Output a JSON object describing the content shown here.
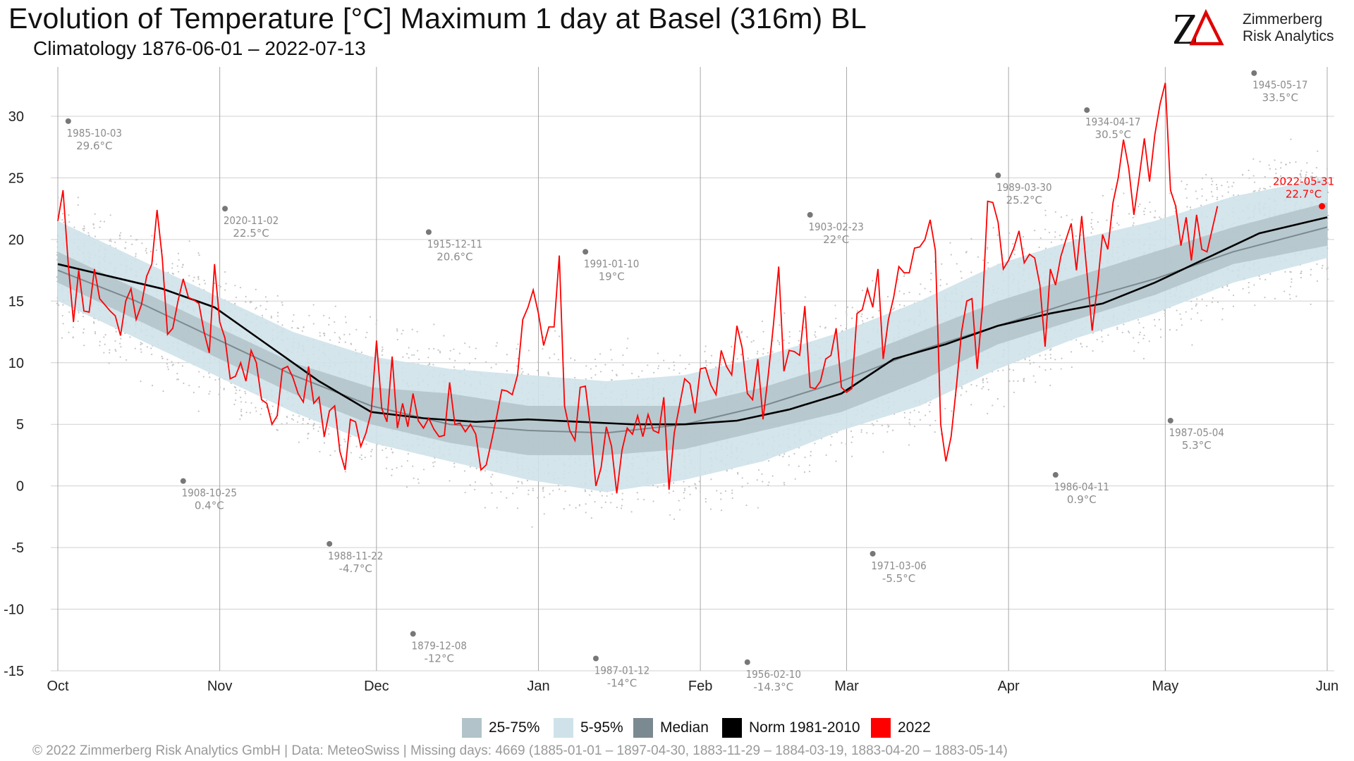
{
  "title": "Evolution of Temperature [°C] Maximum 1 day at Basel (316m) BL",
  "subtitle": "Climatology 1876-06-01 – 2022-07-13",
  "logo": {
    "text_line1": "Zimmerberg",
    "text_line2": "Risk Analytics",
    "letters": "ZΔ"
  },
  "legend": [
    {
      "label": "25-75%",
      "color": "#b2c3c9"
    },
    {
      "label": "5-95%",
      "color": "#cfe2ea"
    },
    {
      "label": "Median",
      "color": "#7b8a90"
    },
    {
      "label": "Norm 1981-2010",
      "color": "#000000"
    },
    {
      "label": "2022",
      "color": "#ff0000"
    }
  ],
  "footer": "©  2022 Zimmerberg Risk Analytics GmbH | Data: MeteoSwiss | Missing days: 4669 (1885-01-01 – 1897-04-30, 1883-11-29 – 1884-03-19, 1883-04-20 – 1883-05-14)",
  "colors": {
    "grid": "#d0d0d0",
    "dots": "#c4c4c4",
    "extreme": "#777777",
    "label_gray": "#8c8c8c",
    "current": "#ff0000"
  },
  "chart_data": {
    "type": "line",
    "xlabel": "",
    "ylabel": "",
    "x_range_days": [
      0,
      243
    ],
    "ylim": [
      -15,
      34
    ],
    "yticks": [
      -15,
      -10,
      -5,
      0,
      5,
      10,
      15,
      20,
      25,
      30
    ],
    "months": [
      {
        "label": "Oct",
        "day": 0
      },
      {
        "label": "Nov",
        "day": 31
      },
      {
        "label": "Dec",
        "day": 61
      },
      {
        "label": "Jan",
        "day": 92
      },
      {
        "label": "Feb",
        "day": 123
      },
      {
        "label": "Mar",
        "day": 151
      },
      {
        "label": "Apr",
        "day": 182
      },
      {
        "label": "May",
        "day": 212
      },
      {
        "label": "Jun",
        "day": 243
      }
    ],
    "band_5_95": [
      [
        0,
        21.5,
        15
      ],
      [
        15,
        18.5,
        12
      ],
      [
        30,
        15.5,
        9
      ],
      [
        45,
        12.5,
        6
      ],
      [
        60,
        10.5,
        3.5
      ],
      [
        75,
        9.5,
        2
      ],
      [
        90,
        9,
        0.5
      ],
      [
        105,
        8.5,
        -0.5
      ],
      [
        120,
        9,
        0.5
      ],
      [
        135,
        10.5,
        2
      ],
      [
        150,
        12.5,
        4.5
      ],
      [
        165,
        15,
        6.5
      ],
      [
        180,
        18,
        9.5
      ],
      [
        195,
        20,
        12
      ],
      [
        210,
        21.5,
        14
      ],
      [
        225,
        23.5,
        16.5
      ],
      [
        243,
        25,
        18.5
      ]
    ],
    "band_25_75": [
      [
        0,
        19,
        16.5
      ],
      [
        15,
        16,
        13.5
      ],
      [
        30,
        13,
        10.5
      ],
      [
        45,
        10,
        7.5
      ],
      [
        60,
        8,
        5
      ],
      [
        75,
        7.5,
        3.5
      ],
      [
        90,
        6.5,
        2.5
      ],
      [
        105,
        6.5,
        2.5
      ],
      [
        120,
        6.5,
        3
      ],
      [
        135,
        8,
        4.5
      ],
      [
        150,
        10,
        6
      ],
      [
        165,
        12.5,
        8.5
      ],
      [
        180,
        15,
        11.5
      ],
      [
        195,
        17,
        13.5
      ],
      [
        210,
        19,
        15.5
      ],
      [
        225,
        21,
        18
      ],
      [
        243,
        23,
        19.5
      ]
    ],
    "median": [
      [
        0,
        17.5
      ],
      [
        15,
        15
      ],
      [
        30,
        12
      ],
      [
        45,
        9
      ],
      [
        60,
        6.5
      ],
      [
        75,
        5
      ],
      [
        90,
        4.5
      ],
      [
        105,
        4.3
      ],
      [
        120,
        5
      ],
      [
        135,
        6.5
      ],
      [
        150,
        8.5
      ],
      [
        165,
        11
      ],
      [
        180,
        13
      ],
      [
        195,
        15
      ],
      [
        210,
        16.8
      ],
      [
        225,
        19
      ],
      [
        243,
        21
      ]
    ],
    "norm_1981_2010": [
      [
        0,
        18
      ],
      [
        10,
        17
      ],
      [
        20,
        16
      ],
      [
        30,
        14.5
      ],
      [
        40,
        11.5
      ],
      [
        50,
        8.5
      ],
      [
        60,
        6
      ],
      [
        70,
        5.5
      ],
      [
        80,
        5.2
      ],
      [
        90,
        5.4
      ],
      [
        100,
        5.2
      ],
      [
        110,
        5
      ],
      [
        120,
        5
      ],
      [
        130,
        5.3
      ],
      [
        140,
        6.2
      ],
      [
        150,
        7.5
      ],
      [
        160,
        10.3
      ],
      [
        170,
        11.5
      ],
      [
        180,
        13
      ],
      [
        190,
        14
      ],
      [
        200,
        14.8
      ],
      [
        210,
        16.5
      ],
      [
        220,
        18.5
      ],
      [
        230,
        20.5
      ],
      [
        243,
        21.8
      ]
    ],
    "series_2022": [
      [
        0,
        21.5
      ],
      [
        1,
        24
      ],
      [
        2,
        18
      ],
      [
        3,
        13.3
      ],
      [
        4,
        17.5
      ],
      [
        5,
        14.2
      ],
      [
        6,
        14.1
      ],
      [
        7,
        17.6
      ],
      [
        8,
        15.2
      ],
      [
        10,
        14.2
      ],
      [
        11,
        13.8
      ],
      [
        12,
        12.2
      ],
      [
        13,
        15
      ],
      [
        14,
        16
      ],
      [
        15,
        13.5
      ],
      [
        16,
        14.7
      ],
      [
        17,
        17
      ],
      [
        18,
        18
      ],
      [
        19,
        22.4
      ],
      [
        20,
        18.5
      ],
      [
        21,
        12.3
      ],
      [
        22,
        12.8
      ],
      [
        23,
        15
      ],
      [
        24,
        16.8
      ],
      [
        25,
        15.3
      ],
      [
        26,
        15.1
      ],
      [
        27,
        14.8
      ],
      [
        28,
        12.5
      ],
      [
        29,
        10.8
      ],
      [
        30,
        18
      ],
      [
        31,
        13.3
      ],
      [
        32,
        12
      ],
      [
        33,
        8.7
      ],
      [
        34,
        8.9
      ],
      [
        35,
        10
      ],
      [
        36,
        8.5
      ],
      [
        37,
        11
      ],
      [
        38,
        10
      ],
      [
        39,
        7
      ],
      [
        40,
        6.7
      ],
      [
        41,
        5
      ],
      [
        42,
        5.7
      ],
      [
        43,
        9.5
      ],
      [
        44,
        9.7
      ],
      [
        45,
        8.8
      ],
      [
        46,
        7.5
      ],
      [
        47,
        6.8
      ],
      [
        48,
        9.7
      ],
      [
        49,
        6.7
      ],
      [
        50,
        7.2
      ],
      [
        51,
        4
      ],
      [
        52,
        6.1
      ],
      [
        53,
        6.5
      ],
      [
        54,
        2.8
      ],
      [
        55,
        1.3
      ],
      [
        56,
        5.4
      ],
      [
        57,
        5.2
      ],
      [
        58,
        3.2
      ],
      [
        59,
        4.3
      ],
      [
        60,
        6
      ],
      [
        61,
        11.8
      ],
      [
        62,
        6.3
      ],
      [
        63,
        5.2
      ],
      [
        64,
        10.5
      ],
      [
        65,
        4.7
      ],
      [
        66,
        6.7
      ],
      [
        67,
        4.8
      ],
      [
        68,
        7.5
      ],
      [
        69,
        5.3
      ],
      [
        70,
        4.7
      ],
      [
        71,
        5.5
      ],
      [
        72,
        4.6
      ],
      [
        73,
        4
      ],
      [
        74,
        4.1
      ],
      [
        75,
        8.4
      ],
      [
        76,
        5
      ],
      [
        77,
        5.1
      ],
      [
        78,
        4.4
      ],
      [
        79,
        5
      ],
      [
        80,
        4.2
      ],
      [
        81,
        1.3
      ],
      [
        82,
        1.7
      ],
      [
        83,
        3.6
      ],
      [
        84,
        5.6
      ],
      [
        85,
        7.8
      ],
      [
        86,
        7.7
      ],
      [
        87,
        7.4
      ],
      [
        88,
        9
      ],
      [
        89,
        13.5
      ],
      [
        90,
        14.5
      ],
      [
        91,
        15.9
      ],
      [
        92,
        14
      ],
      [
        93,
        11.4
      ],
      [
        94,
        12.9
      ],
      [
        95,
        12.9
      ],
      [
        96,
        18.7
      ],
      [
        97,
        6.5
      ],
      [
        98,
        4.5
      ],
      [
        99,
        3.7
      ],
      [
        100,
        8
      ],
      [
        101,
        8.1
      ],
      [
        102,
        4.6
      ],
      [
        103,
        0
      ],
      [
        104,
        1.5
      ],
      [
        105,
        4.8
      ],
      [
        106,
        3.2
      ],
      [
        107,
        -0.6
      ],
      [
        108,
        2.9
      ],
      [
        109,
        4.7
      ],
      [
        110,
        4.2
      ],
      [
        111,
        5.7
      ],
      [
        112,
        4
      ],
      [
        113,
        5.8
      ],
      [
        114,
        4.5
      ],
      [
        115,
        4.3
      ],
      [
        116,
        7.2
      ],
      [
        117,
        -0.3
      ],
      [
        118,
        4.3
      ],
      [
        119,
        6.5
      ],
      [
        120,
        8.7
      ],
      [
        121,
        8.3
      ],
      [
        122,
        5.9
      ],
      [
        123,
        9.5
      ],
      [
        124,
        9.6
      ],
      [
        125,
        8.2
      ],
      [
        126,
        7.4
      ],
      [
        127,
        11
      ],
      [
        128,
        9.7
      ],
      [
        129,
        9
      ],
      [
        130,
        13
      ],
      [
        131,
        11.2
      ],
      [
        132,
        7.5
      ],
      [
        133,
        7
      ],
      [
        134,
        10.3
      ],
      [
        135,
        5.4
      ],
      [
        136,
        9
      ],
      [
        137,
        13.1
      ],
      [
        138,
        17.8
      ],
      [
        139,
        9.3
      ],
      [
        140,
        11
      ],
      [
        141,
        10.9
      ],
      [
        142,
        10.6
      ],
      [
        143,
        14.6
      ],
      [
        144,
        8
      ],
      [
        145,
        7.9
      ],
      [
        146,
        8.5
      ],
      [
        147,
        10.3
      ],
      [
        148,
        10.6
      ],
      [
        149,
        12.8
      ],
      [
        150,
        8
      ],
      [
        151,
        7.6
      ],
      [
        152,
        7.9
      ],
      [
        153,
        14
      ],
      [
        154,
        14.3
      ],
      [
        155,
        16
      ],
      [
        156,
        14.5
      ],
      [
        157,
        17.6
      ],
      [
        158,
        10.3
      ],
      [
        159,
        13.5
      ],
      [
        160,
        15.3
      ],
      [
        161,
        17.8
      ],
      [
        162,
        17.3
      ],
      [
        163,
        17.3
      ],
      [
        164,
        19.3
      ],
      [
        165,
        19.4
      ],
      [
        166,
        20
      ],
      [
        167,
        21.6
      ],
      [
        168,
        19.1
      ],
      [
        169,
        5
      ],
      [
        170,
        2
      ],
      [
        171,
        4
      ],
      [
        172,
        8
      ],
      [
        173,
        12.5
      ],
      [
        174,
        15
      ],
      [
        175,
        15.2
      ],
      [
        176,
        9.5
      ],
      [
        177,
        14.5
      ],
      [
        178,
        23.1
      ],
      [
        179,
        23
      ],
      [
        180,
        21.4
      ],
      [
        181,
        17.6
      ],
      [
        182,
        18.3
      ],
      [
        183,
        19.3
      ],
      [
        184,
        20.7
      ],
      [
        185,
        18.1
      ],
      [
        186,
        18.8
      ],
      [
        187,
        18.5
      ],
      [
        188,
        16.3
      ],
      [
        189,
        11.3
      ],
      [
        190,
        17.6
      ],
      [
        191,
        16.3
      ],
      [
        192,
        18.6
      ],
      [
        193,
        20
      ],
      [
        194,
        21.3
      ],
      [
        195,
        17.5
      ],
      [
        196,
        21.9
      ],
      [
        197,
        17.3
      ],
      [
        198,
        12.6
      ],
      [
        199,
        16.2
      ],
      [
        200,
        20.4
      ],
      [
        201,
        19.2
      ],
      [
        202,
        23
      ],
      [
        203,
        25
      ],
      [
        204,
        28.1
      ],
      [
        205,
        25.8
      ],
      [
        206,
        22
      ],
      [
        207,
        25
      ],
      [
        208,
        28.2
      ],
      [
        209,
        24.7
      ],
      [
        210,
        28.5
      ],
      [
        211,
        31
      ],
      [
        212,
        32.7
      ],
      [
        213,
        24
      ],
      [
        214,
        22.7
      ],
      [
        215,
        19.5
      ],
      [
        216,
        21.8
      ],
      [
        217,
        18.3
      ],
      [
        218,
        22
      ],
      [
        219,
        19.2
      ],
      [
        220,
        19
      ],
      [
        222,
        22.7
      ]
    ],
    "extremes": [
      {
        "day": 2,
        "value": 29.6,
        "date": "1985-10-03",
        "label": "29.6°C"
      },
      {
        "day": 32,
        "value": 22.5,
        "date": "2020-11-02",
        "label": "22.5°C"
      },
      {
        "day": 24,
        "value": 0.4,
        "date": "1908-10-25",
        "label": "0.4°C"
      },
      {
        "day": 52,
        "value": -4.7,
        "date": "1988-11-22",
        "label": "-4.7°C"
      },
      {
        "day": 71,
        "value": 20.6,
        "date": "1915-12-11",
        "label": "20.6°C"
      },
      {
        "day": 68,
        "value": -12,
        "date": "1879-12-08",
        "label": "-12°C"
      },
      {
        "day": 101,
        "value": 19,
        "date": "1991-01-10",
        "label": "19°C"
      },
      {
        "day": 103,
        "value": -14,
        "date": "1987-01-12",
        "label": "-14°C"
      },
      {
        "day": 132,
        "value": -14.3,
        "date": "1956-02-10",
        "label": "-14.3°C"
      },
      {
        "day": 144,
        "value": 22,
        "date": "1903-02-23",
        "label": "22°C"
      },
      {
        "day": 156,
        "value": -5.5,
        "date": "1971-03-06",
        "label": "-5.5°C"
      },
      {
        "day": 180,
        "value": 25.2,
        "date": "1989-03-30",
        "label": "25.2°C"
      },
      {
        "day": 191,
        "value": 0.9,
        "date": "1986-04-11",
        "label": "0.9°C"
      },
      {
        "day": 197,
        "value": 30.5,
        "date": "1934-04-17",
        "label": "30.5°C"
      },
      {
        "day": 213,
        "value": 5.3,
        "date": "1987-05-04",
        "label": "5.3°C"
      },
      {
        "day": 229,
        "value": 33.5,
        "date": "1945-05-17",
        "label": "33.5°C"
      }
    ],
    "current": {
      "day": 242,
      "value": 22.7,
      "date": "2022-05-31",
      "label": "22.7°C"
    }
  }
}
